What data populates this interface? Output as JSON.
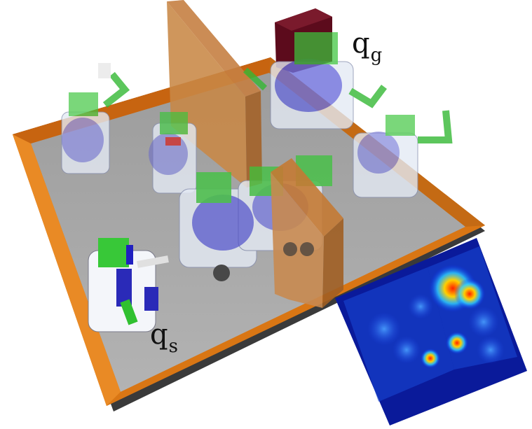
{
  "labels": {
    "goal": {
      "base": "q",
      "subscript": "g"
    },
    "start": {
      "base": "q",
      "subscript": "s"
    }
  },
  "colors": {
    "floor": "#a9a9a9",
    "wall_frame": "#e97d10",
    "wall_dark": "#b85f05",
    "divider": "#c97a2c",
    "goal_block": "#5a0a1a",
    "robot_body": "#e8eef6",
    "robot_arm": "#4a4ad0",
    "gripper": "#37c837",
    "heatmap_bg": "#0a1aa0"
  }
}
